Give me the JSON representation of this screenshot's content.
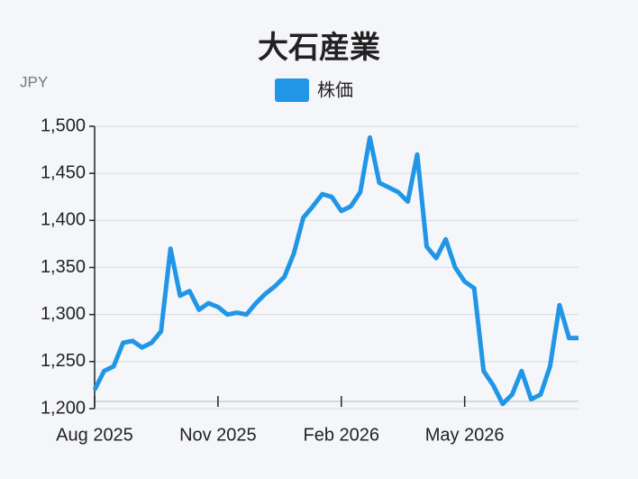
{
  "chart_data": {
    "type": "line",
    "title": "大石産業",
    "y_label": "JPY",
    "categories": [
      "Aug 2025",
      null,
      null,
      null,
      null,
      null,
      null,
      null,
      null,
      null,
      null,
      null,
      null,
      "Nov 2025",
      null,
      null,
      null,
      null,
      null,
      null,
      null,
      null,
      null,
      null,
      null,
      null,
      "Feb 2026",
      null,
      null,
      null,
      null,
      null,
      null,
      null,
      null,
      null,
      null,
      null,
      null,
      "May 2026",
      null,
      null,
      null,
      null,
      null,
      null,
      null,
      null,
      null,
      null,
      null,
      null
    ],
    "series": [
      {
        "name": "株価",
        "color": "#2196e6",
        "values": [
          1220,
          1240,
          1245,
          1270,
          1272,
          1265,
          1270,
          1282,
          1370,
          1320,
          1325,
          1305,
          1312,
          1308,
          1300,
          1302,
          1300,
          1312,
          1322,
          1330,
          1340,
          1365,
          1403,
          1415,
          1428,
          1425,
          1410,
          1415,
          1430,
          1488,
          1440,
          1435,
          1430,
          1420,
          1470,
          1372,
          1360,
          1380,
          1350,
          1335,
          1328,
          1240,
          1225,
          1205,
          1215,
          1240,
          1210,
          1215,
          1245,
          1310,
          1275,
          1275
        ]
      }
    ],
    "ylim": [
      1200,
      1500
    ],
    "yticks": [
      {
        "value": 1200,
        "label": "1,200"
      },
      {
        "value": 1250,
        "label": "1,250"
      },
      {
        "value": 1300,
        "label": "1,300"
      },
      {
        "value": 1350,
        "label": "1,350"
      },
      {
        "value": 1400,
        "label": "1,400"
      },
      {
        "value": 1450,
        "label": "1,450"
      },
      {
        "value": 1500,
        "label": "1,500"
      }
    ],
    "grid": true
  }
}
